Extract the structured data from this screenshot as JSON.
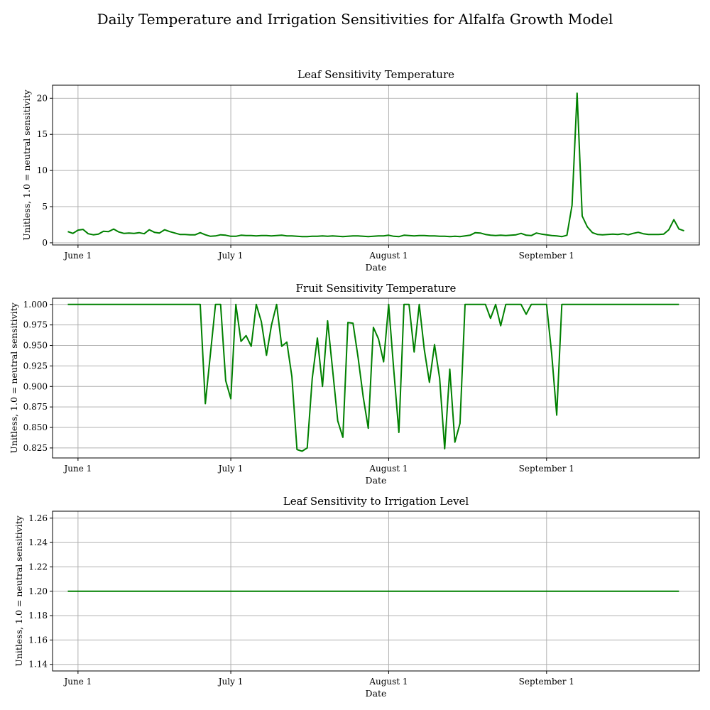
{
  "figure": {
    "title": "Daily Temperature and Irrigation Sensitivities for Alfalfa Growth Model"
  },
  "colors": {
    "line": "#008000",
    "grid": "#b0b0b0",
    "axes": "#000000"
  },
  "chart_data": [
    {
      "type": "line",
      "title": "Leaf Sensitivity Temperature",
      "xlabel": "Date",
      "ylabel": "Unitless, 1.0 = neutral sensitivity",
      "grid": true,
      "x_start": "2023-05-30",
      "x_end": "2023-09-27",
      "xlim": [
        "2023-05-27",
        "2023-10-01"
      ],
      "ylim": [
        -0.3,
        21.8
      ],
      "xticks": [
        {
          "date": "2023-06-01",
          "label": "June 1"
        },
        {
          "date": "2023-07-01",
          "label": "July 1"
        },
        {
          "date": "2023-08-01",
          "label": "August 1"
        },
        {
          "date": "2023-09-01",
          "label": "September 1"
        }
      ],
      "yticks": [
        {
          "value": 0,
          "label": "0"
        },
        {
          "value": 5,
          "label": "5"
        },
        {
          "value": 10,
          "label": "10"
        },
        {
          "value": 15,
          "label": "15"
        },
        {
          "value": 20,
          "label": "20"
        }
      ],
      "values": [
        1.55,
        1.3,
        1.75,
        1.85,
        1.25,
        1.1,
        1.2,
        1.6,
        1.55,
        1.9,
        1.5,
        1.3,
        1.35,
        1.3,
        1.4,
        1.25,
        1.8,
        1.45,
        1.35,
        1.8,
        1.55,
        1.35,
        1.15,
        1.15,
        1.1,
        1.1,
        1.4,
        1.1,
        0.9,
        0.95,
        1.1,
        1.05,
        0.9,
        0.9,
        1.05,
        1.0,
        1.0,
        0.95,
        1.0,
        1.0,
        0.95,
        1.0,
        1.05,
        0.95,
        0.95,
        0.9,
        0.85,
        0.85,
        0.9,
        0.9,
        0.95,
        0.9,
        0.95,
        0.9,
        0.85,
        0.9,
        0.95,
        0.95,
        0.9,
        0.85,
        0.9,
        0.95,
        0.95,
        1.05,
        0.9,
        0.85,
        1.05,
        1.0,
        0.95,
        1.0,
        1.0,
        0.95,
        0.95,
        0.9,
        0.9,
        0.85,
        0.9,
        0.85,
        0.95,
        1.05,
        1.4,
        1.35,
        1.15,
        1.05,
        1.0,
        1.05,
        1.0,
        1.05,
        1.1,
        1.3,
        1.05,
        1.0,
        1.35,
        1.2,
        1.1,
        1.0,
        0.95,
        0.85,
        1.05,
        5.2,
        20.7,
        3.7,
        2.2,
        1.4,
        1.15,
        1.1,
        1.15,
        1.2,
        1.15,
        1.25,
        1.1,
        1.3,
        1.45,
        1.25,
        1.15,
        1.15,
        1.15,
        1.2,
        1.8,
        3.2,
        1.9,
        1.65
      ]
    },
    {
      "type": "line",
      "title": "Fruit Sensitivity Temperature",
      "xlabel": "Date",
      "ylabel": "Unitless, 1.0 = neutral sensitivity",
      "grid": true,
      "x_start": "2023-05-30",
      "x_end": "2023-09-27",
      "xlim": [
        "2023-05-27",
        "2023-10-01"
      ],
      "ylim": [
        0.8128,
        1.0076
      ],
      "xticks": [
        {
          "date": "2023-06-01",
          "label": "June 1"
        },
        {
          "date": "2023-07-01",
          "label": "July 1"
        },
        {
          "date": "2023-08-01",
          "label": "August 1"
        },
        {
          "date": "2023-09-01",
          "label": "September 1"
        }
      ],
      "yticks": [
        {
          "value": 0.825,
          "label": "0.825"
        },
        {
          "value": 0.85,
          "label": "0.850"
        },
        {
          "value": 0.875,
          "label": "0.875"
        },
        {
          "value": 0.9,
          "label": "0.900"
        },
        {
          "value": 0.925,
          "label": "0.925"
        },
        {
          "value": 0.95,
          "label": "0.950"
        },
        {
          "value": 0.975,
          "label": "0.975"
        },
        {
          "value": 1.0,
          "label": "1.000"
        }
      ],
      "values": [
        1.0,
        1.0,
        1.0,
        1.0,
        1.0,
        1.0,
        1.0,
        1.0,
        1.0,
        1.0,
        1.0,
        1.0,
        1.0,
        1.0,
        1.0,
        1.0,
        1.0,
        1.0,
        1.0,
        1.0,
        1.0,
        1.0,
        1.0,
        1.0,
        1.0,
        1.0,
        1.0,
        0.879,
        0.94,
        1.0,
        1.0,
        0.907,
        0.885,
        1.0,
        0.955,
        0.962,
        0.949,
        1.0,
        0.979,
        0.938,
        0.975,
        1.0,
        0.949,
        0.954,
        0.912,
        0.823,
        0.821,
        0.825,
        0.91,
        0.959,
        0.9,
        0.98,
        0.92,
        0.858,
        0.838,
        0.978,
        0.977,
        0.935,
        0.887,
        0.849,
        0.972,
        0.958,
        0.93,
        1.0,
        0.92,
        0.844,
        1.0,
        1.0,
        0.942,
        1.0,
        0.945,
        0.905,
        0.951,
        0.91,
        0.824,
        0.921,
        0.832,
        0.855,
        1.0,
        1.0,
        1.0,
        1.0,
        1.0,
        0.983,
        1.0,
        0.974,
        1.0,
        1.0,
        1.0,
        1.0,
        0.988,
        1.0,
        1.0,
        1.0,
        1.0,
        0.94,
        0.865,
        1.0,
        1.0,
        1.0,
        1.0,
        1.0,
        1.0,
        1.0,
        1.0,
        1.0,
        1.0,
        1.0,
        1.0,
        1.0,
        1.0,
        1.0,
        1.0,
        1.0,
        1.0,
        1.0,
        1.0,
        1.0,
        1.0,
        1.0,
        1.0
      ]
    },
    {
      "type": "line",
      "title": "Leaf Sensitivity to Irrigation Level",
      "xlabel": "Date",
      "ylabel": "Unitless, 1.0 = neutral sensitivity",
      "grid": true,
      "x_start": "2023-05-30",
      "x_end": "2023-09-27",
      "xlim": [
        "2023-05-27",
        "2023-10-01"
      ],
      "ylim": [
        1.1346,
        1.2657
      ],
      "xticks": [
        {
          "date": "2023-06-01",
          "label": "June 1"
        },
        {
          "date": "2023-07-01",
          "label": "July 1"
        },
        {
          "date": "2023-08-01",
          "label": "August 1"
        },
        {
          "date": "2023-09-01",
          "label": "September 1"
        }
      ],
      "yticks": [
        {
          "value": 1.14,
          "label": "1.14"
        },
        {
          "value": 1.16,
          "label": "1.16"
        },
        {
          "value": 1.18,
          "label": "1.18"
        },
        {
          "value": 1.2,
          "label": "1.20"
        },
        {
          "value": 1.22,
          "label": "1.22"
        },
        {
          "value": 1.24,
          "label": "1.24"
        },
        {
          "value": 1.26,
          "label": "1.26"
        }
      ],
      "constant_value": 1.2
    }
  ]
}
